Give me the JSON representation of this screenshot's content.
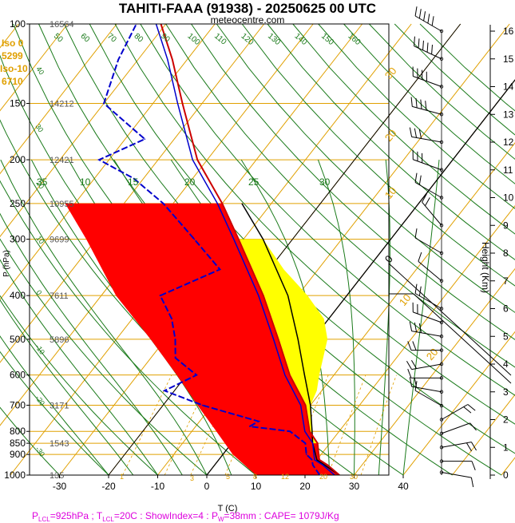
{
  "header": {
    "title": "TAHITI-FAAA (91938) - 20250625 00 UTC",
    "site": "meteocentre.com"
  },
  "info": {
    "iso0_label": "Iso 0",
    "iso0_value": "5299",
    "iso10_label": "Iso-10",
    "iso10_value": "6710"
  },
  "footer": {
    "segments": [
      {
        "text": "P",
        "sub": false
      },
      {
        "text": "LCL",
        "sub": true
      },
      {
        "text": "=925hPa ; T",
        "sub": false
      },
      {
        "text": "LCL",
        "sub": true
      },
      {
        "text": "=20C : ShowIndex=4 : P",
        "sub": false
      },
      {
        "text": "W",
        "sub": true
      },
      {
        "text": "=38mm : CAPE= 1079J/Kg",
        "sub": false
      }
    ]
  },
  "colors": {
    "temperature": "#cc0000",
    "dewpoint": "#0000cc",
    "cape_fill": "#ff0000",
    "cin_fill": "#ffff00",
    "isotherm": "#e0a000",
    "dry_adiabat": "#1a7a1a",
    "info_text": "#e0a000",
    "footer_text": "#dd00dd"
  },
  "chart_data": {
    "type": "skew-t",
    "xlabel": "T (C)",
    "ylabel": "P (hPa)",
    "y2label": "Height (Km)",
    "x_ticks": [
      -30,
      -20,
      -10,
      0,
      10,
      20,
      30,
      40
    ],
    "p_ticks": [
      100,
      150,
      200,
      250,
      300,
      400,
      500,
      600,
      700,
      800,
      850,
      900,
      1000
    ],
    "height_ticks": [
      0,
      1,
      2,
      3,
      4,
      5,
      6,
      7,
      8,
      9,
      10,
      11,
      12,
      13,
      14,
      15,
      16
    ],
    "geopotential_heights": [
      {
        "p": 100,
        "h": "16564"
      },
      {
        "p": 150,
        "h": "14212"
      },
      {
        "p": 200,
        "h": "12421"
      },
      {
        "p": 250,
        "h": "10955"
      },
      {
        "p": 300,
        "h": "9699"
      },
      {
        "p": 400,
        "h": "7611"
      },
      {
        "p": 500,
        "h": "5896"
      },
      {
        "p": 700,
        "h": "3171"
      },
      {
        "p": 850,
        "h": "1543"
      },
      {
        "p": 1000,
        "h": "135"
      }
    ],
    "dry_adiabat_labels_top": [
      "50",
      "60",
      "70",
      "80",
      "90",
      "100",
      "110",
      "120",
      "130",
      "140",
      "150",
      "160"
    ],
    "dry_adiabat_labels_left": [
      "40",
      "30",
      "20",
      "10",
      "0",
      "-10",
      "-20",
      "-30"
    ],
    "mixing_ratio_labels": [
      "1",
      "3",
      "5",
      "8",
      "12",
      "20",
      "30"
    ],
    "moist_adiabat_labels": [
      "35",
      "10",
      "15",
      "20",
      "25",
      "30"
    ],
    "isotherm_labels": [
      "30",
      "20",
      "10",
      "0",
      "10",
      "20"
    ],
    "temperature": [
      {
        "p": 1000,
        "t": 27
      },
      {
        "p": 950,
        "t": 23
      },
      {
        "p": 925,
        "t": 20.5
      },
      {
        "p": 900,
        "t": 19.5
      },
      {
        "p": 850,
        "t": 17.5
      },
      {
        "p": 800,
        "t": 14
      },
      {
        "p": 700,
        "t": 9
      },
      {
        "p": 600,
        "t": 1
      },
      {
        "p": 500,
        "t": -7
      },
      {
        "p": 400,
        "t": -17
      },
      {
        "p": 300,
        "t": -31
      },
      {
        "p": 250,
        "t": -40
      },
      {
        "p": 200,
        "t": -52
      },
      {
        "p": 150,
        "t": -64
      },
      {
        "p": 120,
        "t": -73
      },
      {
        "p": 100,
        "t": -81
      }
    ],
    "dewpoint": [
      {
        "p": 1000,
        "t": 23
      },
      {
        "p": 950,
        "t": 20
      },
      {
        "p": 925,
        "t": 19
      },
      {
        "p": 900,
        "t": 17
      },
      {
        "p": 850,
        "t": 15
      },
      {
        "p": 800,
        "t": 10
      },
      {
        "p": 780,
        "t": 1
      },
      {
        "p": 760,
        "t": 2
      },
      {
        "p": 700,
        "t": -12
      },
      {
        "p": 650,
        "t": -22
      },
      {
        "p": 600,
        "t": -18
      },
      {
        "p": 550,
        "t": -25
      },
      {
        "p": 500,
        "t": -28
      },
      {
        "p": 450,
        "t": -32
      },
      {
        "p": 400,
        "t": -38
      },
      {
        "p": 350,
        "t": -30
      },
      {
        "p": 300,
        "t": -40
      },
      {
        "p": 250,
        "t": -52
      },
      {
        "p": 220,
        "t": -62
      },
      {
        "p": 200,
        "t": -72
      },
      {
        "p": 180,
        "t": -66
      },
      {
        "p": 150,
        "t": -80
      },
      {
        "p": 120,
        "t": -84
      },
      {
        "p": 100,
        "t": -86
      }
    ],
    "parcel": [
      {
        "p": 1000,
        "t": 27
      },
      {
        "p": 925,
        "t": 20
      },
      {
        "p": 850,
        "t": 16.5
      },
      {
        "p": 800,
        "t": 14.5
      },
      {
        "p": 700,
        "t": 10
      },
      {
        "p": 600,
        "t": 4
      },
      {
        "p": 500,
        "t": -3
      },
      {
        "p": 400,
        "t": -12
      },
      {
        "p": 300,
        "t": -26
      },
      {
        "p": 250,
        "t": -36
      }
    ],
    "cape_region": [
      {
        "p": 250,
        "t": -40
      },
      {
        "p": 250,
        "t": -72
      },
      {
        "p": 300,
        "t": -62
      },
      {
        "p": 400,
        "t": -47
      },
      {
        "p": 500,
        "t": -33
      },
      {
        "p": 600,
        "t": -22
      },
      {
        "p": 700,
        "t": -13
      },
      {
        "p": 800,
        "t": -5
      },
      {
        "p": 900,
        "t": 2
      },
      {
        "p": 1000,
        "t": 10
      },
      {
        "p": 1000,
        "t": 27
      },
      {
        "p": 950,
        "t": 23
      },
      {
        "p": 925,
        "t": 20.5
      },
      {
        "p": 850,
        "t": 17.5
      },
      {
        "p": 800,
        "t": 14
      },
      {
        "p": 700,
        "t": 9
      },
      {
        "p": 600,
        "t": 1
      },
      {
        "p": 500,
        "t": -7
      },
      {
        "p": 400,
        "t": -17
      },
      {
        "p": 300,
        "t": -31
      }
    ],
    "cin_region": [
      {
        "p": 300,
        "t": -31
      },
      {
        "p": 400,
        "t": -17
      },
      {
        "p": 500,
        "t": -7
      },
      {
        "p": 600,
        "t": 1
      },
      {
        "p": 700,
        "t": 9
      },
      {
        "p": 800,
        "t": 14
      },
      {
        "p": 850,
        "t": 17.5
      },
      {
        "p": 850,
        "t": 16.5
      },
      {
        "p": 800,
        "t": 14.5
      },
      {
        "p": 700,
        "t": 10
      },
      {
        "p": 650,
        "t": 9
      },
      {
        "p": 600,
        "t": 7
      },
      {
        "p": 500,
        "t": 3
      },
      {
        "p": 450,
        "t": -1
      },
      {
        "p": 400,
        "t": -8
      },
      {
        "p": 350,
        "t": -17
      },
      {
        "p": 300,
        "t": -26
      }
    ],
    "winds": [
      {
        "h": 0.1,
        "dir": 100,
        "spd": 10
      },
      {
        "h": 0.5,
        "dir": 90,
        "spd": 10
      },
      {
        "h": 1,
        "dir": 80,
        "spd": 15
      },
      {
        "h": 1.5,
        "dir": 70,
        "spd": 10
      },
      {
        "h": 2,
        "dir": 60,
        "spd": 15
      },
      {
        "h": 2.5,
        "dir": 300,
        "spd": 10
      },
      {
        "h": 3,
        "dir": 280,
        "spd": 15
      },
      {
        "h": 3.5,
        "dir": 270,
        "spd": 10
      },
      {
        "h": 4,
        "dir": 260,
        "spd": 15
      },
      {
        "h": 4.5,
        "dir": 270,
        "spd": 20
      },
      {
        "h": 5,
        "dir": 280,
        "spd": 25
      },
      {
        "h": 5.5,
        "dir": 290,
        "spd": 20
      },
      {
        "h": 6,
        "dir": 300,
        "spd": 15
      },
      {
        "h": 7,
        "dir": 310,
        "spd": 10
      },
      {
        "h": 8,
        "dir": 300,
        "spd": 10
      },
      {
        "h": 9,
        "dir": 320,
        "spd": 15
      },
      {
        "h": 10,
        "dir": 300,
        "spd": 20
      },
      {
        "h": 11,
        "dir": 290,
        "spd": 25
      },
      {
        "h": 12,
        "dir": 280,
        "spd": 30
      },
      {
        "h": 13,
        "dir": 285,
        "spd": 35
      },
      {
        "h": 14,
        "dir": 290,
        "spd": 40
      },
      {
        "h": 15,
        "dir": 295,
        "spd": 45
      },
      {
        "h": 16,
        "dir": 300,
        "spd": 50
      }
    ]
  }
}
